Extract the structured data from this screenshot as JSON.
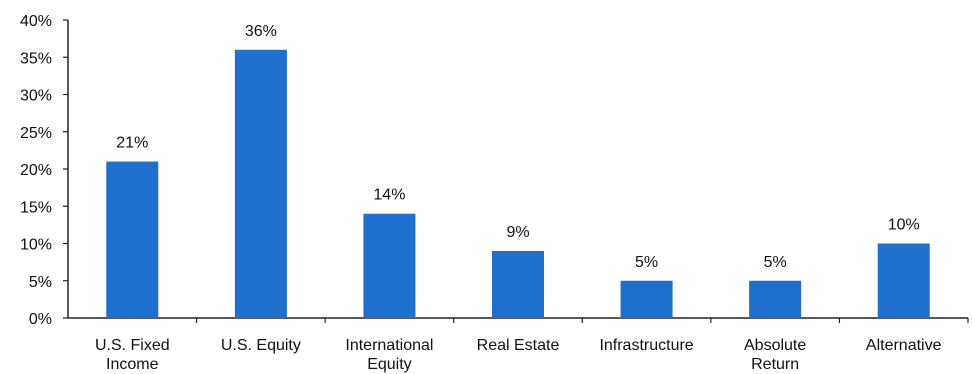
{
  "chart_data": {
    "type": "bar",
    "categories": [
      [
        "U.S. Fixed",
        "Income"
      ],
      [
        "U.S. Equity"
      ],
      [
        "International",
        "Equity"
      ],
      [
        "Real Estate"
      ],
      [
        "Infrastructure"
      ],
      [
        "Absolute",
        "Return"
      ],
      [
        "Alternative"
      ]
    ],
    "values": [
      21,
      36,
      14,
      9,
      5,
      5,
      10
    ],
    "data_labels": [
      "21%",
      "36%",
      "14%",
      "9%",
      "5%",
      "5%",
      "10%"
    ],
    "yticks": [
      0,
      5,
      10,
      15,
      20,
      25,
      30,
      35,
      40
    ],
    "ytick_labels": [
      "0%",
      "5%",
      "10%",
      "15%",
      "20%",
      "25%",
      "30%",
      "35%",
      "40%"
    ],
    "ylim": [
      0,
      40
    ],
    "grid": false,
    "legend": "none",
    "bar_color": "#1f6fcc"
  }
}
